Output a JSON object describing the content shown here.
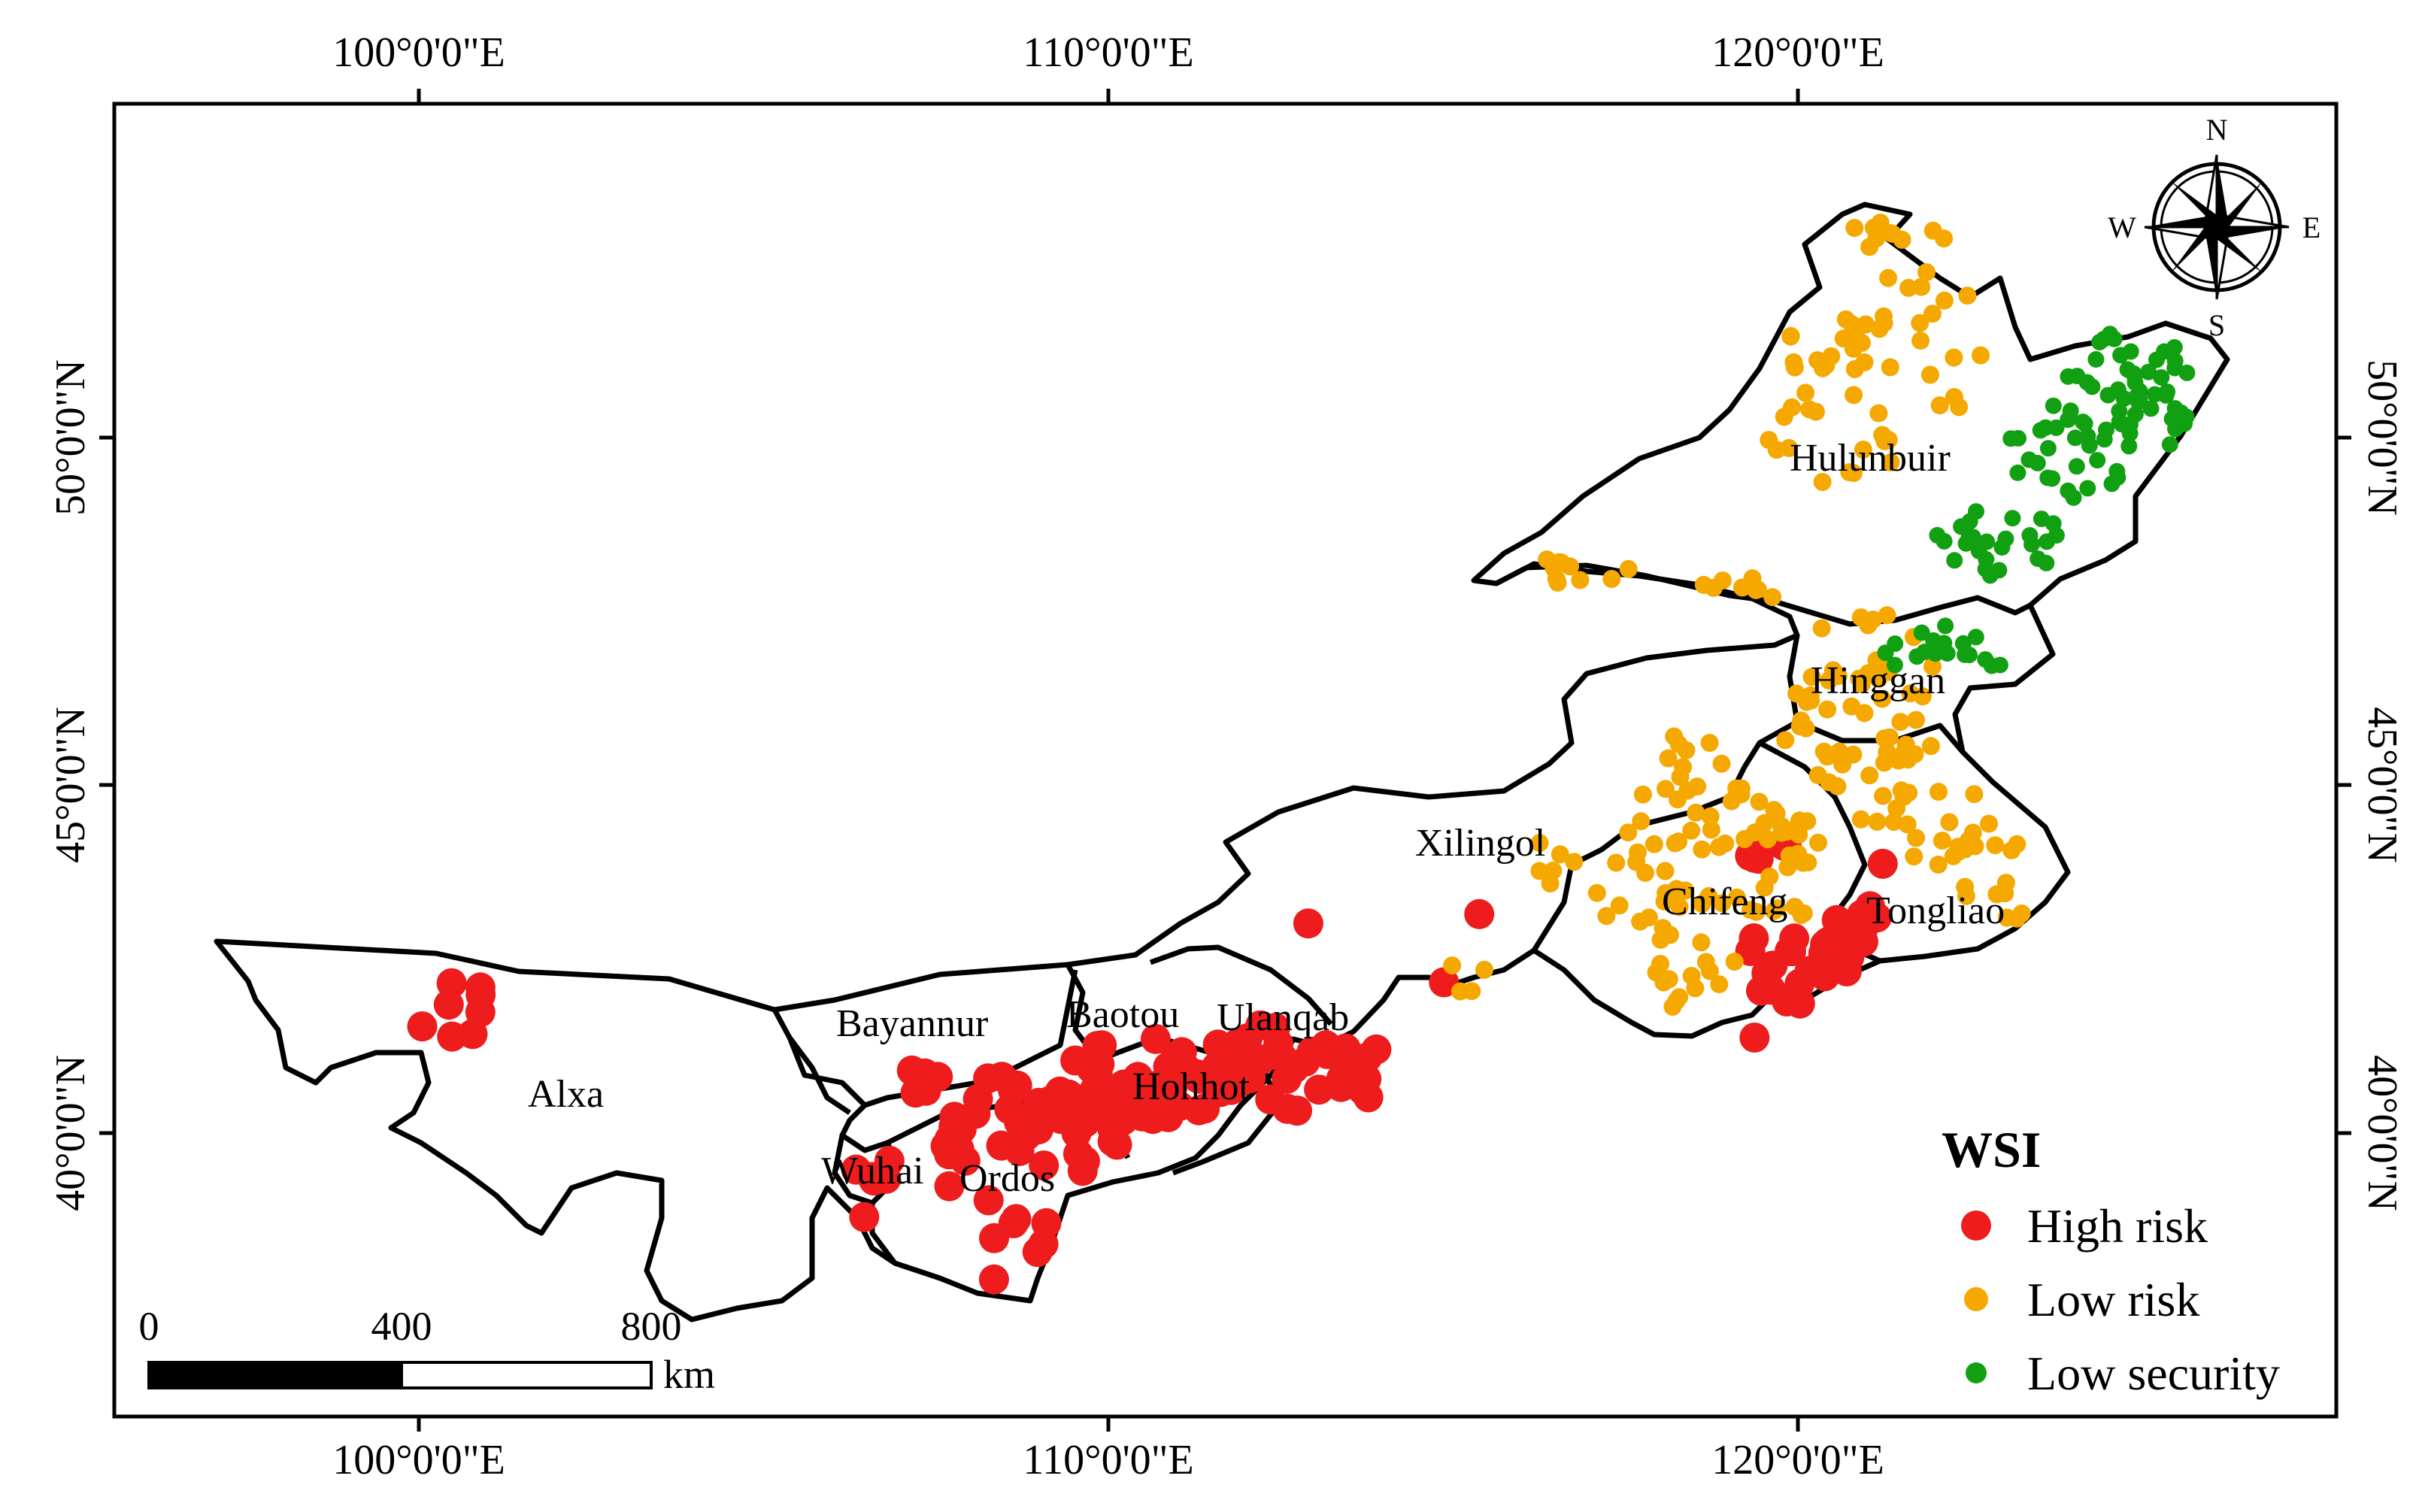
{
  "axes": {
    "top_ticks": [
      "100°0'0\"E",
      "110°0'0\"E",
      "120°0'0\"E"
    ],
    "bottom_ticks": [
      "100°0'0\"E",
      "110°0'0\"E",
      "120°0'0\"E"
    ],
    "left_ticks": [
      "50°0'0\"N",
      "45°0'0\"N",
      "40°0'0\"N"
    ],
    "right_ticks": [
      "50°0'0\"N",
      "45°0'0\"N",
      "40°0'0\"N"
    ]
  },
  "regions": [
    {
      "name": "Hulunbuir"
    },
    {
      "name": "Hinggan"
    },
    {
      "name": "Xilingol"
    },
    {
      "name": "Chifeng"
    },
    {
      "name": "Tongliao"
    },
    {
      "name": "Bayannur"
    },
    {
      "name": "Baotou"
    },
    {
      "name": "Ulanqab"
    },
    {
      "name": "Hohhot"
    },
    {
      "name": "Alxa"
    },
    {
      "name": "Wuhai"
    },
    {
      "name": "Ordos"
    }
  ],
  "legend": {
    "title": "WSI",
    "items": [
      {
        "label": "High risk",
        "color": "#ee1c1c"
      },
      {
        "label": "Low risk",
        "color": "#f5a800"
      },
      {
        "label": "Low security",
        "color": "#11a011"
      }
    ]
  },
  "scale_bar": {
    "ticks": [
      "0",
      "400",
      "800"
    ],
    "unit": "km"
  },
  "compass": {
    "n": "N",
    "s": "S",
    "e": "E",
    "w": "W"
  }
}
